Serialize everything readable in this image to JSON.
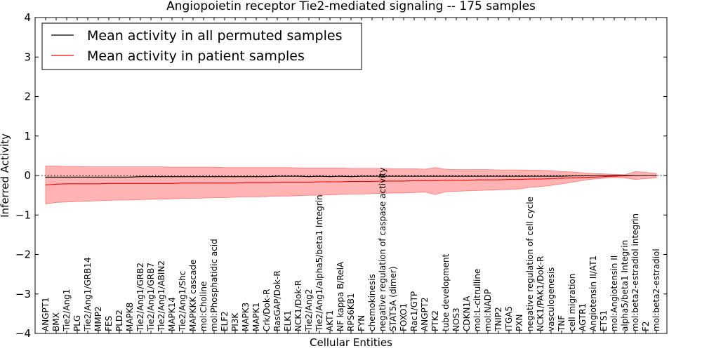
{
  "chart_data": {
    "type": "line",
    "title": "Angiopoietin receptor Tie2-mediated signaling -- 175 samples",
    "xlabel": "Cellular Entities",
    "ylabel": "Inferred Activity",
    "ylim": [
      -4,
      4
    ],
    "yticks": [
      4,
      3,
      2,
      1,
      0,
      -1,
      -2,
      -3,
      -4
    ],
    "tick_labels": [
      "4",
      "3",
      "2",
      "1",
      "0",
      "−1",
      "−2",
      "−3",
      "−4"
    ],
    "grid": false,
    "legend_position": "top-left",
    "categories": [
      "ANGPT1",
      "BMX",
      "Tie2/Ang1",
      "PLG",
      "Tie2/Ang1/GRB14",
      "MMP2",
      "FES",
      "PLD2",
      "MAPK8",
      "Tie2/Ang1/GRB2",
      "Tie2/Ang1/GRB7",
      "Tie2/Ang1/ABIN2",
      "MAPK14",
      "Tie2/Ang1/Shc",
      "MAPKKK cascade",
      "mol:Choline",
      "mol:Phosphatidic acid",
      "ELF2",
      "PI3K",
      "MAPK3",
      "MAPK1",
      "Crk/Dok-R",
      "RasGAP/Dok-R",
      "ELK1",
      "NCK1/Dok-R",
      "Tie2/Ang2",
      "Tie2/Ang1/alpha5/beta1 Integrin",
      "AKT1",
      "NF kappa B/RelA",
      "RPS6KB1",
      "FYN",
      "chemokinesis",
      "negative regulation of caspase activity",
      "STAT5A (dimer)",
      "FOXO1",
      "Rac1/GTP",
      "ANGPT2",
      "PTK2",
      "tube development",
      "NOS3",
      "CDKN1A",
      "mol:L-citrulline",
      "mol:NADP",
      "TNIP2",
      "ITGA5",
      "PXN",
      "negative regulation of cell cycle",
      "NCK1/PAK1/Dok-R",
      "vasculogenesis",
      "TNF",
      "cell migration",
      "AGTR1",
      "Angiotensin II/AT1",
      "ETS1",
      "mol:Angiotensin II",
      "alpha5/beta1 Integrin",
      "mol:beta2-estradiol integrin",
      "F2",
      "mol:beta2-estradiol"
    ],
    "series": [
      {
        "name": "Mean activity in all permuted samples",
        "color": "#000000",
        "values": [
          -0.04,
          -0.04,
          -0.04,
          -0.04,
          -0.04,
          -0.04,
          -0.04,
          -0.04,
          -0.04,
          -0.03,
          -0.03,
          -0.03,
          -0.03,
          -0.03,
          -0.03,
          -0.03,
          -0.03,
          -0.03,
          -0.03,
          -0.03,
          -0.03,
          -0.03,
          -0.02,
          -0.02,
          -0.02,
          -0.03,
          -0.02,
          -0.03,
          -0.02,
          -0.03,
          -0.02,
          -0.02,
          -0.02,
          -0.02,
          -0.02,
          -0.02,
          -0.02,
          -0.02,
          -0.02,
          -0.02,
          -0.02,
          -0.02,
          -0.02,
          -0.02,
          -0.02,
          -0.02,
          -0.02,
          -0.02,
          -0.02,
          -0.02,
          -0.01,
          -0.01,
          0.0,
          0.0,
          0.0,
          0.0,
          0.0,
          0.0,
          0.0
        ]
      },
      {
        "name": "Mean activity in patient samples",
        "color": "#ff0000",
        "band_color": "#ff9999",
        "values": [
          -0.24,
          -0.22,
          -0.21,
          -0.21,
          -0.21,
          -0.21,
          -0.2,
          -0.2,
          -0.2,
          -0.2,
          -0.2,
          -0.2,
          -0.2,
          -0.19,
          -0.19,
          -0.19,
          -0.19,
          -0.19,
          -0.19,
          -0.18,
          -0.18,
          -0.18,
          -0.17,
          -0.17,
          -0.17,
          -0.17,
          -0.16,
          -0.16,
          -0.16,
          -0.15,
          -0.15,
          -0.15,
          -0.14,
          -0.14,
          -0.14,
          -0.13,
          -0.13,
          -0.13,
          -0.12,
          -0.12,
          -0.12,
          -0.11,
          -0.11,
          -0.11,
          -0.1,
          -0.1,
          -0.09,
          -0.09,
          -0.08,
          -0.07,
          -0.06,
          -0.05,
          -0.04,
          -0.03,
          -0.02,
          -0.01,
          0.0,
          0.0,
          0.0
        ],
        "upper": [
          0.24,
          0.24,
          0.23,
          0.23,
          0.22,
          0.22,
          0.22,
          0.22,
          0.22,
          0.22,
          0.22,
          0.22,
          0.21,
          0.21,
          0.21,
          0.21,
          0.21,
          0.2,
          0.2,
          0.2,
          0.2,
          0.2,
          0.2,
          0.2,
          0.19,
          0.19,
          0.19,
          0.19,
          0.19,
          0.18,
          0.18,
          0.18,
          0.18,
          0.17,
          0.17,
          0.17,
          0.16,
          0.2,
          0.16,
          0.15,
          0.15,
          0.15,
          0.15,
          0.14,
          0.14,
          0.14,
          0.13,
          0.13,
          0.12,
          0.1,
          0.09,
          0.07,
          0.05,
          0.04,
          0.03,
          0.02,
          0.1,
          0.08,
          0.05
        ],
        "lower": [
          -0.72,
          -0.68,
          -0.67,
          -0.66,
          -0.65,
          -0.64,
          -0.63,
          -0.62,
          -0.62,
          -0.61,
          -0.6,
          -0.6,
          -0.59,
          -0.58,
          -0.58,
          -0.57,
          -0.56,
          -0.56,
          -0.55,
          -0.54,
          -0.54,
          -0.53,
          -0.52,
          -0.52,
          -0.51,
          -0.5,
          -0.5,
          -0.49,
          -0.48,
          -0.47,
          -0.47,
          -0.46,
          -0.45,
          -0.44,
          -0.44,
          -0.43,
          -0.42,
          -0.48,
          -0.41,
          -0.4,
          -0.39,
          -0.38,
          -0.37,
          -0.36,
          -0.35,
          -0.34,
          -0.3,
          -0.28,
          -0.25,
          -0.21,
          -0.17,
          -0.12,
          -0.09,
          -0.07,
          -0.05,
          -0.06,
          -0.1,
          -0.08,
          -0.06
        ]
      }
    ]
  }
}
